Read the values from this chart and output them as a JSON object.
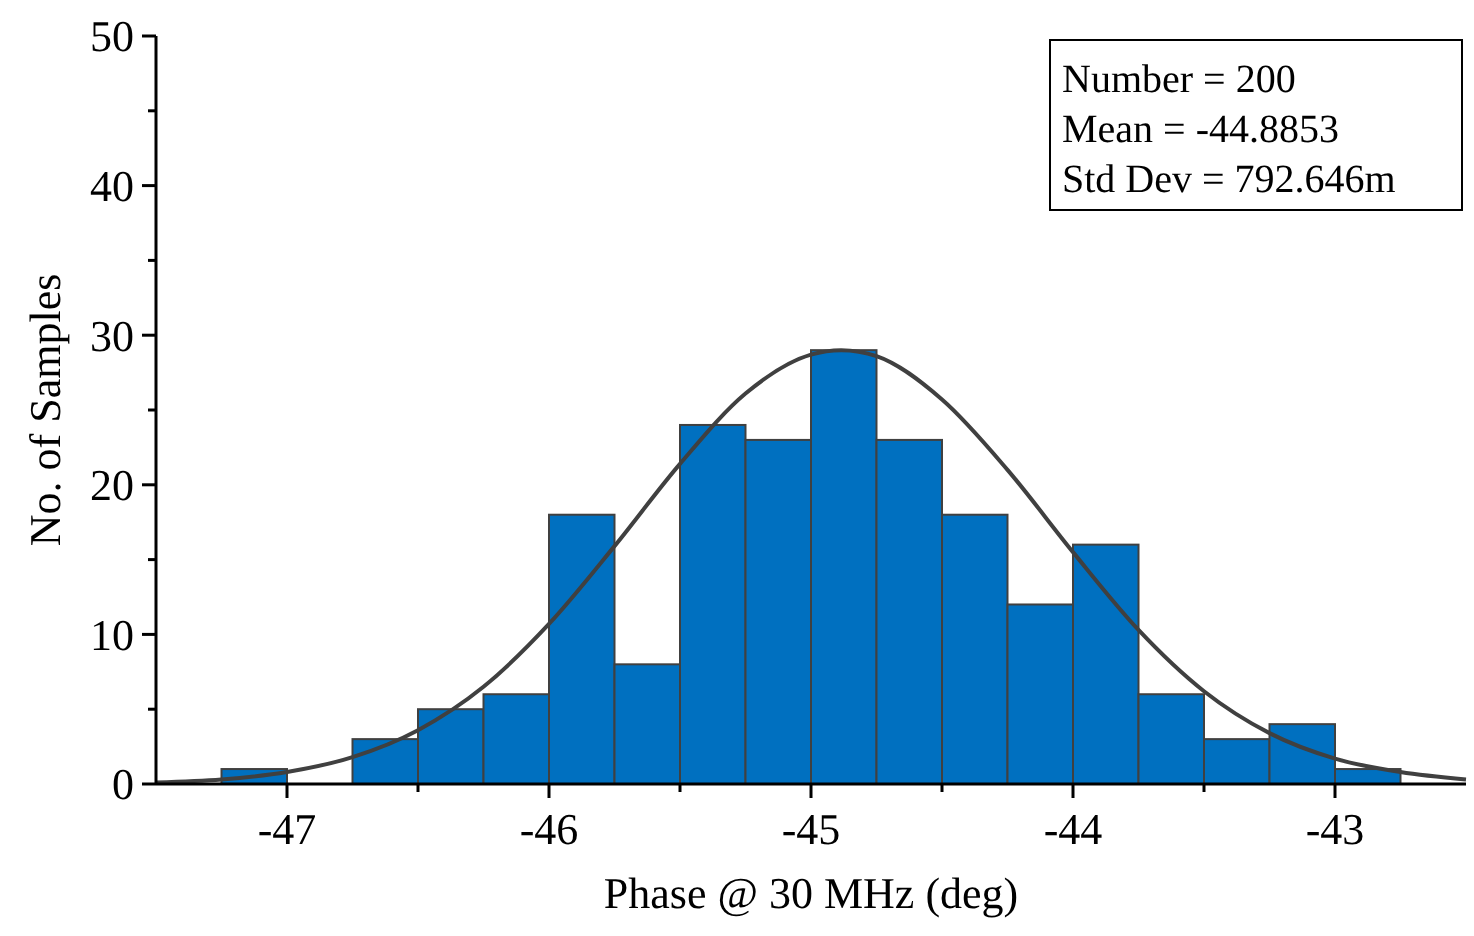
{
  "chart_data": {
    "type": "histogram",
    "xlabel": "Phase @ 30 MHz (deg)",
    "ylabel": "No. of Samples",
    "xlim": [
      -47.5,
      -42.5
    ],
    "ylim": [
      0,
      50
    ],
    "xticks": [
      -47,
      {
        "value": -46.5,
        "label": null
      },
      -46,
      {
        "value": -45.5,
        "label": null
      },
      -45,
      {
        "value": -44.5,
        "label": null
      },
      -44,
      {
        "value": -43.5,
        "label": null
      },
      -43
    ],
    "yticks": [
      0,
      {
        "value": 5,
        "label": null
      },
      10,
      {
        "value": 15,
        "label": null
      },
      20,
      {
        "value": 25,
        "label": null
      },
      30,
      {
        "value": 35,
        "label": null
      },
      40,
      {
        "value": 45,
        "label": null
      },
      50
    ],
    "annotations": [
      "Number = 200",
      "Mean = -44.8853",
      "Std Dev = 792.646m"
    ],
    "series": [
      {
        "color": "#0070c0",
        "bins": [
          -47.25,
          -47,
          -46.75,
          -46.5,
          -46.25,
          -46,
          -45.75,
          -45.5,
          -45.25,
          -45,
          -44.75,
          -44.5,
          -44.25,
          -44,
          -43.75,
          -43.5,
          -43.25,
          -43,
          -42.75
        ],
        "values": [
          1,
          0,
          3,
          5,
          6,
          18,
          8,
          24,
          23,
          29,
          23,
          18,
          12,
          16,
          6,
          3,
          4,
          1
        ]
      },
      {
        "type": "line",
        "color": "#404040",
        "x": [
          -47.5,
          -47.25,
          -47,
          -46.75,
          -46.5,
          -46.25,
          -46,
          -45.75,
          -45.5,
          -45.25,
          -45,
          -44.885,
          -44.75,
          -44.5,
          -44.25,
          -44,
          -43.75,
          -43.5,
          -43.25,
          -43,
          -42.75,
          -42.5
        ],
        "values": [
          0.1,
          0.3,
          0.8,
          1.8,
          3.6,
          6.5,
          10.7,
          15.9,
          21.4,
          26.1,
          28.7,
          29,
          28.6,
          25.7,
          21,
          15.5,
          10.3,
          6.2,
          3.4,
          1.7,
          0.8,
          0.3
        ]
      }
    ]
  }
}
